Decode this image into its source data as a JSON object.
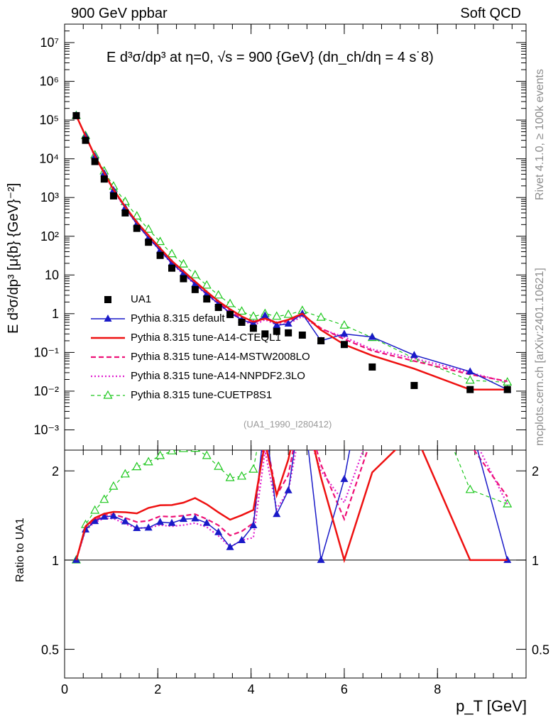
{
  "header": {
    "left": "900 GeV ppbar",
    "right": "Soft QCD"
  },
  "side_labels": {
    "top": "Rivet 4.1.0, ≥ 100k events",
    "bottom": "mcplots.cern.ch [arXiv:2401.10621]"
  },
  "colors": {
    "ua1": "#000000",
    "default": "#1a1ac8",
    "cteq": "#ee1111",
    "mstw": "#ee1177",
    "nnpdf": "#e022d0",
    "cuetp": "#1ec81e"
  },
  "chart_data": {
    "type": "line",
    "title": "E d³σ/dp³ at η=0, √s = 900 {GeV} (dn_ch/dη = 4 s˙8)",
    "xlabel": "p_T [GeV]",
    "ylabel": "E d³σ/dp³ [μ{b} {GeV}⁻²]",
    "ratio_ylabel": "Ratio to UA1",
    "reference": "(UA1_1990_I280412)",
    "xlim": [
      0,
      9.9
    ],
    "ylim": [
      0.0003,
      30000000
    ],
    "ratio_ylim": [
      0.4,
      2.35
    ],
    "x_ticks": [
      "0",
      "2",
      "4",
      "6",
      "8"
    ],
    "y_ticks": [
      "10⁻³",
      "10⁻²",
      "10⁻¹",
      "1",
      "10",
      "10²",
      "10³",
      "10⁴",
      "10⁵",
      "10⁶",
      "10⁷"
    ],
    "ratio_ticks": [
      "0.5",
      "1",
      "2"
    ],
    "x": [
      0.25,
      0.45,
      0.65,
      0.85,
      1.05,
      1.3,
      1.55,
      1.8,
      2.05,
      2.3,
      2.55,
      2.8,
      3.05,
      3.3,
      3.55,
      3.8,
      4.05,
      4.3,
      4.55,
      4.8,
      5.1,
      5.5,
      6.0,
      6.6,
      7.5,
      8.7,
      9.5
    ],
    "series": [
      {
        "name": "UA1",
        "key": "ua1",
        "values": [
          130000,
          30000,
          8500,
          3000,
          1100,
          400,
          160,
          70,
          32,
          15,
          8,
          4.2,
          2.4,
          1.45,
          0.95,
          0.6,
          0.42,
          0.3,
          0.35,
          0.32,
          0.28,
          0.2,
          0.16,
          0.042,
          0.014,
          0.011,
          0.011
        ]
      },
      {
        "name": "Pythia 8.315 default",
        "key": "default",
        "values": [
          130000,
          38000,
          11500,
          4200,
          1550,
          540,
          205,
          90,
          43,
          20,
          11,
          5.8,
          3.2,
          1.8,
          1.05,
          0.7,
          0.55,
          0.9,
          0.5,
          0.55,
          1.0,
          0.2,
          0.3,
          0.25,
          0.085,
          0.032,
          0.011
        ]
      },
      {
        "name": "Pythia 8.315 tune-A14-CTEQL1",
        "key": "cteq",
        "values": [
          130000,
          39000,
          11800,
          4300,
          1600,
          580,
          230,
          105,
          49,
          23,
          12.5,
          6.8,
          3.7,
          2.1,
          1.3,
          0.85,
          0.62,
          0.75,
          0.58,
          0.7,
          1.0,
          0.38,
          0.16,
          0.083,
          0.038,
          0.011,
          0.011
        ]
      },
      {
        "name": "Pythia 8.315 tune-A14-MSTW2008LO",
        "key": "mstw",
        "values": [
          130000,
          38500,
          11600,
          4250,
          1570,
          555,
          215,
          95,
          45,
          21,
          11.3,
          6.0,
          3.3,
          1.9,
          1.15,
          0.75,
          0.56,
          0.8,
          0.58,
          0.62,
          0.95,
          0.42,
          0.22,
          0.11,
          0.06,
          0.027,
          0.018
        ]
      },
      {
        "name": "Pythia 8.315 tune-A14-NNPDF2.3LO",
        "key": "nnpdf",
        "values": [
          130000,
          38000,
          11400,
          4150,
          1520,
          530,
          205,
          90,
          42,
          19.5,
          10.5,
          5.6,
          3.1,
          1.75,
          1.05,
          0.7,
          0.5,
          0.7,
          0.52,
          0.55,
          0.85,
          0.4,
          0.25,
          0.12,
          0.07,
          0.03,
          0.017
        ]
      },
      {
        "name": "Pythia 8.315 tune-CUETP8S1",
        "key": "cuetp",
        "values": [
          130000,
          39500,
          12500,
          4800,
          1950,
          780,
          330,
          150,
          72,
          35,
          19,
          10,
          5.4,
          3.0,
          1.8,
          1.15,
          0.85,
          1.0,
          0.85,
          0.95,
          1.2,
          0.8,
          0.5,
          0.24,
          0.07,
          0.019,
          0.017
        ]
      }
    ]
  }
}
